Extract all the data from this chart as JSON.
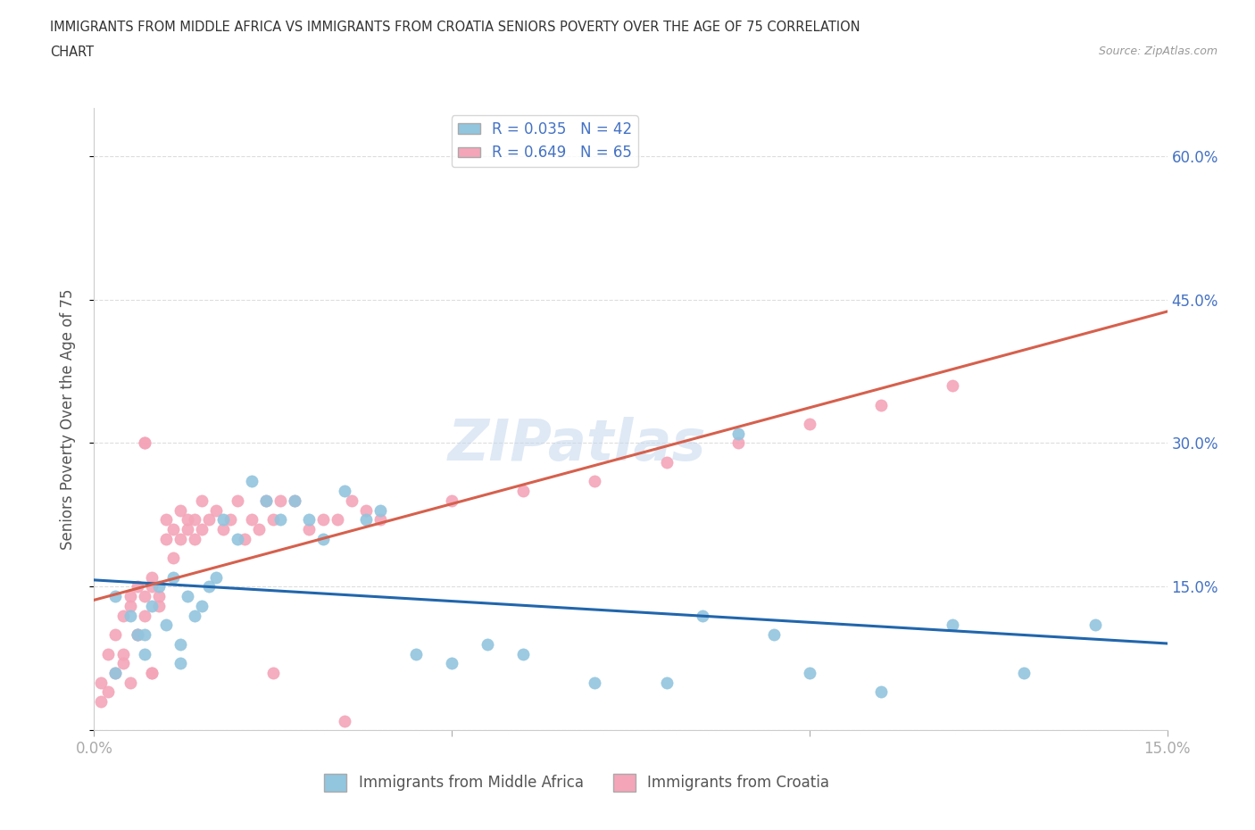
{
  "title_line1": "IMMIGRANTS FROM MIDDLE AFRICA VS IMMIGRANTS FROM CROATIA SENIORS POVERTY OVER THE AGE OF 75 CORRELATION",
  "title_line2": "CHART",
  "source": "Source: ZipAtlas.com",
  "ylabel": "Seniors Poverty Over the Age of 75",
  "xlim": [
    0.0,
    0.15
  ],
  "ylim": [
    0.0,
    0.65
  ],
  "x_ticks": [
    0.0,
    0.05,
    0.1,
    0.15
  ],
  "y_ticks": [
    0.0,
    0.15,
    0.3,
    0.45,
    0.6
  ],
  "blue_color": "#92c5de",
  "pink_color": "#f4a5b8",
  "blue_line_color": "#2166ac",
  "pink_line_color": "#d6604d",
  "blue_label_legend": "R = 0.035   N = 42",
  "pink_label_legend": "R = 0.649   N = 65",
  "legend_text_color": "#4472c4",
  "watermark": "ZIPatlas",
  "background_color": "#ffffff",
  "grid_color": "#dddddd",
  "blue_scatter_x": [
    0.003,
    0.005,
    0.006,
    0.007,
    0.008,
    0.009,
    0.01,
    0.011,
    0.012,
    0.013,
    0.014,
    0.015,
    0.016,
    0.017,
    0.018,
    0.02,
    0.022,
    0.024,
    0.026,
    0.028,
    0.03,
    0.032,
    0.035,
    0.038,
    0.04,
    0.045,
    0.05,
    0.055,
    0.06,
    0.07,
    0.08,
    0.085,
    0.09,
    0.095,
    0.1,
    0.11,
    0.12,
    0.13,
    0.14,
    0.003,
    0.007,
    0.012
  ],
  "blue_scatter_y": [
    0.14,
    0.12,
    0.1,
    0.08,
    0.13,
    0.15,
    0.11,
    0.16,
    0.09,
    0.14,
    0.12,
    0.13,
    0.15,
    0.16,
    0.22,
    0.2,
    0.26,
    0.24,
    0.22,
    0.24,
    0.22,
    0.2,
    0.25,
    0.22,
    0.23,
    0.08,
    0.07,
    0.09,
    0.08,
    0.05,
    0.05,
    0.12,
    0.31,
    0.1,
    0.06,
    0.04,
    0.11,
    0.06,
    0.11,
    0.06,
    0.1,
    0.07
  ],
  "pink_scatter_x": [
    0.001,
    0.002,
    0.003,
    0.004,
    0.004,
    0.005,
    0.005,
    0.006,
    0.006,
    0.007,
    0.007,
    0.008,
    0.008,
    0.009,
    0.009,
    0.01,
    0.01,
    0.011,
    0.011,
    0.012,
    0.012,
    0.013,
    0.013,
    0.014,
    0.014,
    0.015,
    0.015,
    0.016,
    0.017,
    0.018,
    0.019,
    0.02,
    0.021,
    0.022,
    0.023,
    0.024,
    0.025,
    0.026,
    0.028,
    0.03,
    0.032,
    0.034,
    0.036,
    0.038,
    0.04,
    0.05,
    0.06,
    0.07,
    0.08,
    0.09,
    0.1,
    0.11,
    0.12,
    0.007,
    0.025,
    0.035,
    0.008,
    0.001,
    0.002,
    0.003,
    0.004,
    0.005,
    0.006,
    0.007,
    0.008
  ],
  "pink_scatter_y": [
    0.05,
    0.08,
    0.1,
    0.12,
    0.07,
    0.14,
    0.13,
    0.15,
    0.1,
    0.12,
    0.14,
    0.16,
    0.15,
    0.13,
    0.14,
    0.2,
    0.22,
    0.18,
    0.21,
    0.2,
    0.23,
    0.22,
    0.21,
    0.2,
    0.22,
    0.24,
    0.21,
    0.22,
    0.23,
    0.21,
    0.22,
    0.24,
    0.2,
    0.22,
    0.21,
    0.24,
    0.22,
    0.24,
    0.24,
    0.21,
    0.22,
    0.22,
    0.24,
    0.23,
    0.22,
    0.24,
    0.25,
    0.26,
    0.28,
    0.3,
    0.32,
    0.34,
    0.36,
    0.3,
    0.06,
    0.01,
    0.06,
    0.03,
    0.04,
    0.06,
    0.08,
    0.05,
    0.1,
    0.3,
    0.06
  ]
}
